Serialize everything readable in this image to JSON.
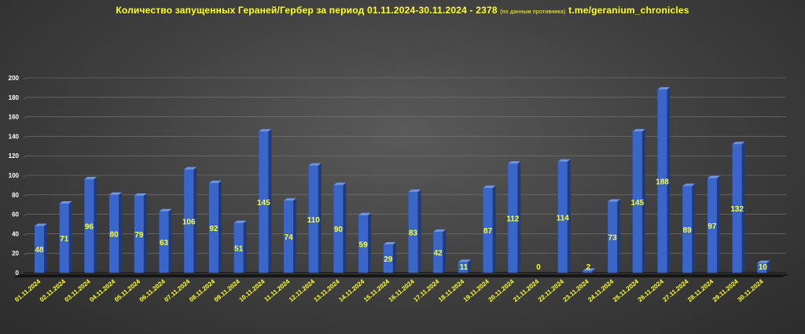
{
  "title": {
    "main": "Количество запущенных Гераней/Гербер  за период 01.11.2024-30.11.2024  - 2378",
    "note": "(по данным противника)",
    "source": "t.me/geranium_chronicles"
  },
  "colors": {
    "bar_front": "#3a66c9",
    "bar_side": "#1e3a80",
    "bar_top": "#6f93e6",
    "label": "#ffff33",
    "axis_text": "#ffffff",
    "grid": "#7a7a7a"
  },
  "chart_data": {
    "type": "bar",
    "title": "Количество запущенных Гераней/Гербер  за период 01.11.2024-30.11.2024  - 2378",
    "xlabel": "",
    "ylabel": "",
    "ylim": [
      0,
      200
    ],
    "yticks": [
      "0",
      "20",
      "40",
      "60",
      "80",
      "100",
      "120",
      "140",
      "160",
      "180",
      "200"
    ],
    "grid": true,
    "legend": "none",
    "categories": [
      "01.11.2024",
      "02.11.2024",
      "03.11.2024",
      "04.11.2024",
      "05.11.2024",
      "06.11.2024",
      "07.11.2024",
      "08.11.2024",
      "09.11.2024",
      "10.11.2024",
      "11.11.2024",
      "12.11.2024",
      "13.11.2024",
      "14.11.2024",
      "15.11.2024",
      "16.11.2024",
      "17.11.2024",
      "18.11.2024",
      "19.11.2024",
      "20.11.2024",
      "21.11.2024",
      "22.11.2024",
      "23.11.2024",
      "24.11.2024",
      "25.11.2024",
      "26.11.2024",
      "27.11.2024",
      "28.11.2024",
      "29.11.2024",
      "30.11.2024"
    ],
    "values": [
      48,
      71,
      96,
      80,
      79,
      63,
      106,
      92,
      51,
      145,
      74,
      110,
      90,
      59,
      29,
      83,
      42,
      11,
      87,
      112,
      0,
      114,
      2,
      73,
      145,
      188,
      89,
      97,
      132,
      10
    ],
    "data_labels": [
      "48",
      "71",
      "96",
      "80",
      "79",
      "63",
      "106",
      "92",
      "51",
      "145",
      "74",
      "110",
      "90",
      "59",
      "29",
      "83",
      "42",
      "11",
      "87",
      "112",
      "0",
      "114",
      "2",
      "73",
      "145",
      "188",
      "89",
      "97",
      "132",
      "10"
    ]
  }
}
